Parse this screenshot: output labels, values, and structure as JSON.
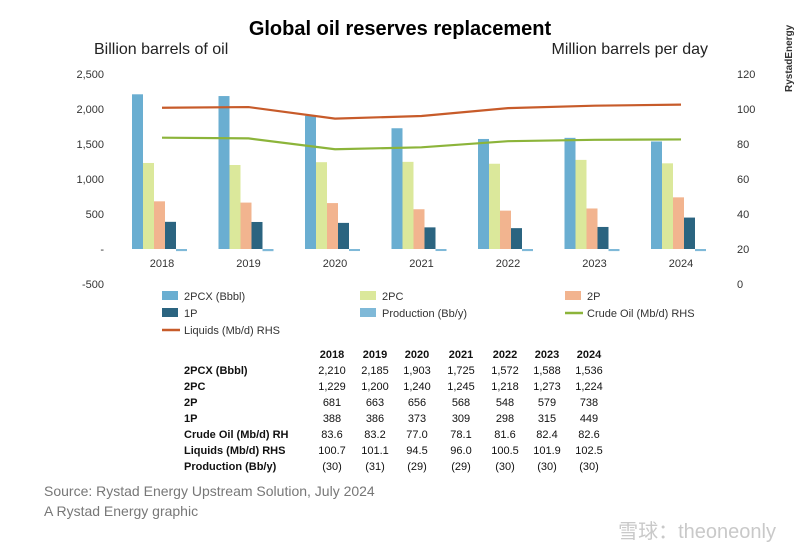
{
  "chart_data": {
    "type": "bar",
    "title": "Global oil reserves replacement",
    "ylabel_left": "Billion barrels of oil",
    "ylabel_right": "Million barrels per day",
    "categories": [
      "2018",
      "2019",
      "2020",
      "2021",
      "2022",
      "2023",
      "2024"
    ],
    "ylim_left": [
      -500,
      2500
    ],
    "ylim_right": [
      0,
      120
    ],
    "left_ticks": [
      "2,500",
      "2,000",
      "1,500",
      "1,000",
      "500",
      "-",
      "-500"
    ],
    "left_tick_values": [
      2500,
      2000,
      1500,
      1000,
      500,
      0,
      -500
    ],
    "right_ticks": [
      "120",
      "100",
      "80",
      "60",
      "40",
      "20",
      "0"
    ],
    "right_tick_values": [
      120,
      100,
      80,
      60,
      40,
      20,
      0
    ],
    "grid": false,
    "legend_position": "bottom",
    "series": [
      {
        "name": "2PCX (Bbbl)",
        "kind": "bar",
        "color": "#6aaed1",
        "values": [
          2210,
          2185,
          1903,
          1725,
          1572,
          1588,
          1536
        ]
      },
      {
        "name": "2PC",
        "kind": "bar",
        "color": "#dbe89b",
        "values": [
          1229,
          1200,
          1240,
          1245,
          1218,
          1273,
          1224
        ]
      },
      {
        "name": "2P",
        "kind": "bar",
        "color": "#f2b48f",
        "values": [
          681,
          663,
          656,
          568,
          548,
          579,
          738
        ]
      },
      {
        "name": "1P",
        "kind": "bar",
        "color": "#2b6480",
        "values": [
          388,
          386,
          373,
          309,
          298,
          315,
          449
        ]
      },
      {
        "name": "Production (Bb/y)",
        "kind": "bar",
        "color": "#7fb9d8",
        "values": [
          -30,
          -31,
          -29,
          -29,
          -30,
          -30,
          -30
        ]
      },
      {
        "name": "Crude Oil (Mb/d) RHS",
        "kind": "line",
        "axis": "right",
        "color": "#8cb43a",
        "values": [
          83.6,
          83.2,
          77.0,
          78.1,
          81.6,
          82.4,
          82.6
        ]
      },
      {
        "name": "Liquids (Mb/d) RHS",
        "kind": "line",
        "axis": "right",
        "color": "#c75b2a",
        "values": [
          100.7,
          101.1,
          94.5,
          96.0,
          100.5,
          101.9,
          102.5
        ]
      }
    ],
    "table": {
      "headers": [
        "2018",
        "2019",
        "2020",
        "2021",
        "2022",
        "2023",
        "2024"
      ],
      "rows": [
        {
          "label": "2PCX (Bbbl)",
          "values": [
            "2,210",
            "2,185",
            "1,903",
            "1,725",
            "1,572",
            "1,588",
            "1,536"
          ]
        },
        {
          "label": "2PC",
          "values": [
            "1,229",
            "1,200",
            "1,240",
            "1,245",
            "1,218",
            "1,273",
            "1,224"
          ]
        },
        {
          "label": "2P",
          "values": [
            "681",
            "663",
            "656",
            "568",
            "548",
            "579",
            "738"
          ]
        },
        {
          "label": "1P",
          "values": [
            "388",
            "386",
            "373",
            "309",
            "298",
            "315",
            "449"
          ]
        },
        {
          "label": "Crude Oil (Mb/d) RH",
          "values": [
            "83.6",
            "83.2",
            "77.0",
            "78.1",
            "81.6",
            "82.4",
            "82.6"
          ]
        },
        {
          "label": "Liquids (Mb/d) RHS",
          "values": [
            "100.7",
            "101.1",
            "94.5",
            "96.0",
            "100.5",
            "101.9",
            "102.5"
          ]
        },
        {
          "label": "Production (Bb/y)",
          "values": [
            "(30)",
            "(31)",
            "(29)",
            "(29)",
            "(30)",
            "(30)",
            "(30)"
          ]
        }
      ]
    }
  },
  "source_line": "Source: Rystad Energy Upstream Solution, July 2024",
  "credit_line": "A Rystad Energy graphic",
  "brand": "RystadEnergy",
  "watermark": "雪球：theoneonly"
}
